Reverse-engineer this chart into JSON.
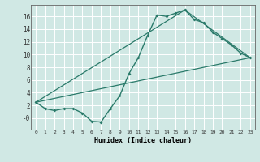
{
  "xlabel": "Humidex (Indice chaleur)",
  "bg_color": "#d0e8e4",
  "grid_color": "#b8d8d4",
  "line_color": "#2a7a6a",
  "xlim": [
    -0.5,
    23.5
  ],
  "ylim": [
    -1.8,
    17.8
  ],
  "xticks": [
    0,
    1,
    2,
    3,
    4,
    5,
    6,
    7,
    8,
    9,
    10,
    11,
    12,
    13,
    14,
    15,
    16,
    17,
    18,
    19,
    20,
    21,
    22,
    23
  ],
  "yticks": [
    0,
    2,
    4,
    6,
    8,
    10,
    12,
    14,
    16
  ],
  "ytick_labels": [
    "-0",
    "2",
    "4",
    "6",
    "8",
    "10",
    "12",
    "14",
    "16"
  ],
  "line1_x": [
    0,
    1,
    2,
    3,
    4,
    5,
    6,
    7,
    8,
    9,
    10,
    11,
    12,
    13,
    14,
    15,
    16,
    17,
    18,
    19,
    20,
    21,
    22,
    23
  ],
  "line1_y": [
    2.5,
    1.5,
    1.2,
    1.5,
    1.5,
    0.8,
    -0.5,
    -0.6,
    1.5,
    3.5,
    7.0,
    9.5,
    13.0,
    16.2,
    16.0,
    16.5,
    17.0,
    15.5,
    15.0,
    13.5,
    12.5,
    11.5,
    10.2,
    9.5
  ],
  "line2_x": [
    0,
    23
  ],
  "line2_y": [
    2.5,
    9.5
  ],
  "line3_x": [
    0,
    16,
    23
  ],
  "line3_y": [
    2.5,
    17.0,
    9.5
  ]
}
